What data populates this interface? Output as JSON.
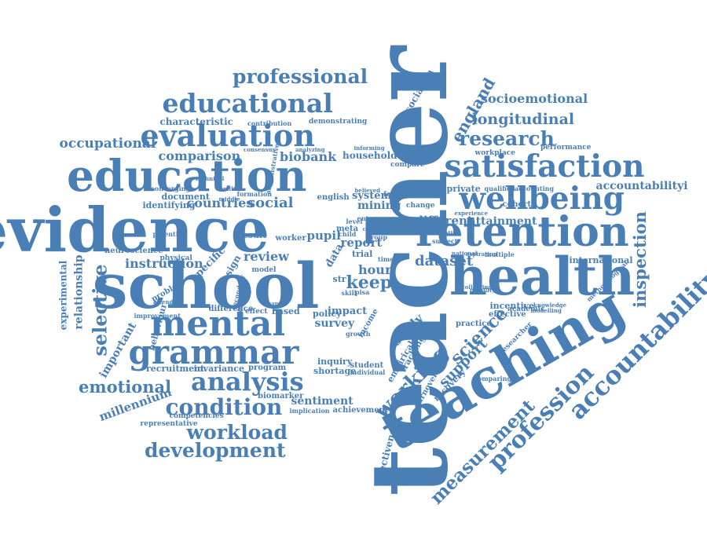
{
  "colors": {
    "word": "#4a7fb5",
    "background": "#ffffff"
  },
  "cloud": {
    "title": "",
    "words": [
      {
        "id": "teacher",
        "text": "teacher"
      },
      {
        "id": "teaching",
        "text": "teaching"
      },
      {
        "id": "school",
        "text": "school"
      },
      {
        "id": "evidence",
        "text": "evidence"
      },
      {
        "id": "education",
        "text": "education"
      },
      {
        "id": "health",
        "text": "health"
      },
      {
        "id": "retention",
        "text": "retention"
      },
      {
        "id": "mental",
        "text": "mental"
      },
      {
        "id": "grammar",
        "text": "grammar"
      },
      {
        "id": "satisfaction",
        "text": "satisfaction"
      },
      {
        "id": "wellbeing",
        "text": "wellbeing"
      },
      {
        "id": "evaluation",
        "text": "evaluation"
      },
      {
        "id": "educational",
        "text": "educational"
      },
      {
        "id": "professional",
        "text": "professional"
      },
      {
        "id": "accountability_big",
        "text": "accountability"
      },
      {
        "id": "profession",
        "text": "profession"
      },
      {
        "id": "measurement",
        "text": "measurement"
      },
      {
        "id": "analysis",
        "text": "analysis"
      },
      {
        "id": "condition",
        "text": "condition"
      },
      {
        "id": "workload",
        "text": "workload"
      },
      {
        "id": "development",
        "text": "development"
      },
      {
        "id": "emotional",
        "text": "emotional"
      },
      {
        "id": "selective",
        "text": "selective"
      },
      {
        "id": "working",
        "text": "working"
      },
      {
        "id": "science",
        "text": "science"
      },
      {
        "id": "inspection",
        "text": "inspection"
      },
      {
        "id": "research",
        "text": "research"
      },
      {
        "id": "longitudinal",
        "text": "longitudinal"
      },
      {
        "id": "socioemotional",
        "text": "socioemotional"
      },
      {
        "id": "england",
        "text": "england"
      },
      {
        "id": "association",
        "text": "association"
      },
      {
        "id": "occupational",
        "text": "occupational"
      },
      {
        "id": "comparison",
        "text": "comparison"
      },
      {
        "id": "biobank",
        "text": "biobank"
      },
      {
        "id": "household",
        "text": "household"
      },
      {
        "id": "accountabilityi",
        "text": "accountabilityi"
      },
      {
        "id": "keep",
        "text": "keep"
      },
      {
        "id": "dataset",
        "text": "dataset"
      },
      {
        "id": "countries",
        "text": "countries"
      },
      {
        "id": "social",
        "text": "social"
      },
      {
        "id": "different",
        "text": "different"
      },
      {
        "id": "attainment",
        "text": "attainment"
      },
      {
        "id": "instruction",
        "text": "instruction"
      },
      {
        "id": "review",
        "text": "review"
      },
      {
        "id": "pupil",
        "text": "pupil"
      },
      {
        "id": "report",
        "text": "report"
      },
      {
        "id": "hour",
        "text": "hour"
      },
      {
        "id": "mining",
        "text": "mining"
      },
      {
        "id": "system",
        "text": "system"
      },
      {
        "id": "survey",
        "text": "survey"
      },
      {
        "id": "impact",
        "text": "impact"
      },
      {
        "id": "study",
        "text": "study"
      },
      {
        "id": "support",
        "text": "support"
      },
      {
        "id": "sentiment",
        "text": "sentiment"
      },
      {
        "id": "important",
        "text": "important"
      },
      {
        "id": "relationship",
        "text": "relationship"
      },
      {
        "id": "experimental",
        "text": "experimental"
      },
      {
        "id": "millennium",
        "text": "millennium"
      },
      {
        "id": "characteristic",
        "text": "characteristic"
      },
      {
        "id": "document",
        "text": "document"
      },
      {
        "id": "identifying",
        "text": "identifying"
      },
      {
        "id": "specific",
        "text": "specific"
      },
      {
        "id": "design",
        "text": "design"
      },
      {
        "id": "neuroscience",
        "text": "neuroscience"
      },
      {
        "id": "international",
        "text": "international"
      },
      {
        "id": "incentive",
        "text": "incentive"
      },
      {
        "id": "effective",
        "text": "effective"
      },
      {
        "id": "cohort",
        "text": "cohort"
      },
      {
        "id": "private",
        "text": "private"
      },
      {
        "id": "effectiveness",
        "text": "effectiveness"
      },
      {
        "id": "policy",
        "text": "policy"
      },
      {
        "id": "trial",
        "text": "trial"
      },
      {
        "id": "inquiry",
        "text": "inquiry"
      },
      {
        "id": "shortage",
        "text": "shortage"
      },
      {
        "id": "recruitment",
        "text": "recruitment"
      },
      {
        "id": "invariance",
        "text": "invariance"
      },
      {
        "id": "program",
        "text": "program"
      },
      {
        "id": "achievement",
        "text": "achievement"
      },
      {
        "id": "biomarker",
        "text": "biomarker"
      },
      {
        "id": "competencies",
        "text": "competencies"
      },
      {
        "id": "representative",
        "text": "representative"
      },
      {
        "id": "turnover",
        "text": "turnover"
      },
      {
        "id": "tracking",
        "text": "tracking"
      },
      {
        "id": "empirical",
        "text": "empirical"
      },
      {
        "id": "recovery",
        "text": "recovery"
      },
      {
        "id": "practice",
        "text": "practice"
      },
      {
        "id": "researcher",
        "text": "researcher"
      },
      {
        "id": "performance",
        "text": "performance"
      },
      {
        "id": "workplace",
        "text": "workplace"
      },
      {
        "id": "accounting",
        "text": "accounting"
      },
      {
        "id": "qualified",
        "text": "qualified"
      },
      {
        "id": "academic",
        "text": "academic"
      },
      {
        "id": "modelling",
        "text": "modelling"
      },
      {
        "id": "methodological",
        "text": "methodological"
      },
      {
        "id": "comparing",
        "text": "comparing"
      },
      {
        "id": "approach",
        "text": "approach"
      },
      {
        "id": "compare",
        "text": "compare"
      },
      {
        "id": "demonstrating",
        "text": "demonstrating"
      },
      {
        "id": "contribution",
        "text": "contribution"
      },
      {
        "id": "informing",
        "text": "informing"
      },
      {
        "id": "consensus",
        "text": "consensus"
      },
      {
        "id": "formation",
        "text": "formation"
      },
      {
        "id": "english",
        "text": "english"
      },
      {
        "id": "forgoes",
        "text": "forgoes"
      },
      {
        "id": "change",
        "text": "change"
      },
      {
        "id": "converging",
        "text": "converging"
      },
      {
        "id": "technical",
        "text": "technical"
      },
      {
        "id": "result",
        "text": "result"
      },
      {
        "id": "worker",
        "text": "worker"
      },
      {
        "id": "potential",
        "text": "potential"
      },
      {
        "id": "physical",
        "text": "physical"
      },
      {
        "id": "model",
        "text": "model"
      },
      {
        "id": "problem",
        "text": "problem"
      },
      {
        "id": "improvement",
        "text": "improvement"
      },
      {
        "id": "based",
        "text": "based"
      },
      {
        "id": "behaviour",
        "text": "behaviour"
      },
      {
        "id": "difference",
        "text": "difference"
      },
      {
        "id": "effect",
        "text": "effect"
      },
      {
        "id": "student",
        "text": "student"
      },
      {
        "id": "individual",
        "text": "individual"
      },
      {
        "id": "implication",
        "text": "implication"
      },
      {
        "id": "growth",
        "text": "growth"
      },
      {
        "id": "income",
        "text": "income"
      },
      {
        "id": "secondary",
        "text": "secondary"
      },
      {
        "id": "attending",
        "text": "attending"
      },
      {
        "id": "str",
        "text": "str"
      },
      {
        "id": "data",
        "text": "data"
      },
      {
        "id": "child",
        "text": "child"
      },
      {
        "id": "meta",
        "text": "meta"
      },
      {
        "id": "level",
        "text": "level"
      },
      {
        "id": "group",
        "text": "group"
      },
      {
        "id": "time",
        "text": "time"
      },
      {
        "id": "skill",
        "text": "skill"
      },
      {
        "id": "pisa",
        "text": "pisa"
      },
      {
        "id": "mobility",
        "text": "mobility"
      },
      {
        "id": "knowledge",
        "text": "knowledge"
      },
      {
        "id": "middle",
        "text": "middle"
      },
      {
        "id": "familiar",
        "text": "familiar"
      },
      {
        "id": "analyzing",
        "text": "analyzing"
      },
      {
        "id": "administrative",
        "text": "administrative"
      },
      {
        "id": "chapter",
        "text": "chapter"
      },
      {
        "id": "person",
        "text": "person"
      },
      {
        "id": "subject",
        "text": "subject"
      },
      {
        "id": "national",
        "text": "national"
      },
      {
        "id": "multiple",
        "text": "multiple"
      },
      {
        "id": "scientific",
        "text": "scientific"
      },
      {
        "id": "experience",
        "text": "experience"
      },
      {
        "id": "aspiration",
        "text": "aspiration"
      },
      {
        "id": "entry",
        "text": "entry"
      },
      {
        "id": "cross",
        "text": "cross"
      },
      {
        "id": "believed",
        "text": "believed"
      },
      {
        "id": "collecting",
        "text": "collecting"
      }
    ]
  }
}
